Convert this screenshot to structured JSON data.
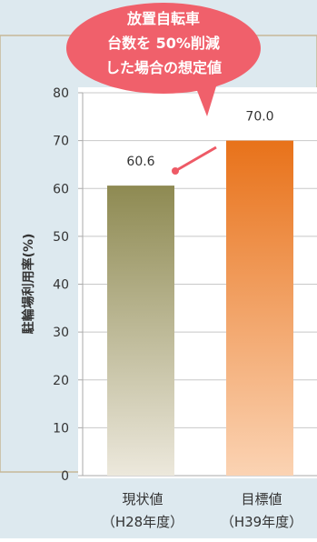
{
  "chart_data": {
    "type": "bar",
    "categories": [
      "現状値\n（H28年度）",
      "目標値\n（H39年度）"
    ],
    "values": [
      60.6,
      70.0
    ],
    "value_labels": [
      "60.6",
      "70.0"
    ],
    "ylabel": "駐輪場利用率(%)",
    "ylim": [
      0,
      80
    ],
    "yticks": [
      0,
      10,
      20,
      30,
      40,
      50,
      60,
      70,
      80
    ],
    "grid": true,
    "annotation": "放置自転車\n台数を 50%削減\nした場合の想定値",
    "colors": {
      "bar_current_top": "#8e8a52",
      "bar_current_bottom": "#ece8dc",
      "bar_target_top": "#e8721a",
      "bar_target_bottom": "#fbd3b3",
      "callout": "#f0606b",
      "background": "#dde9ef"
    }
  }
}
